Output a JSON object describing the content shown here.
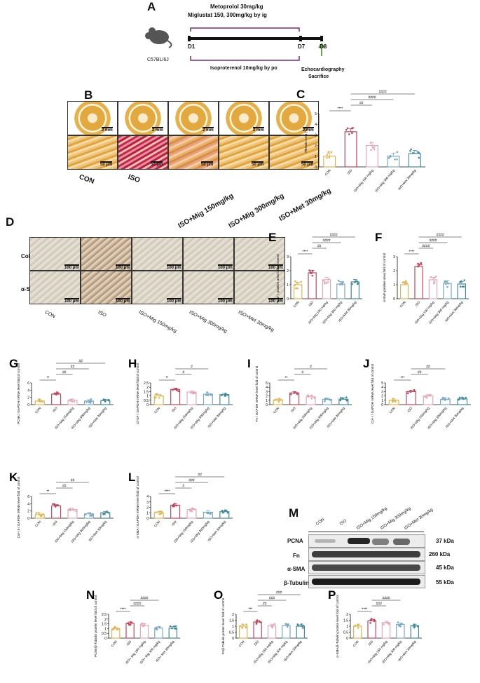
{
  "panelA": {
    "label": "A",
    "drug1": "Metoprolol  30mg/kg",
    "drug2": "Miglustat 150,  300mg/kg by ig",
    "strain": "C57BL/6J",
    "d1": "D1",
    "d7": "D7",
    "d8": "D8",
    "iso": "Isoproterenol  10mg/kg  by po",
    "end1": "Echocardiography",
    "end2": "Sacrifice"
  },
  "panelB": {
    "label": "B",
    "scale_whole": "2 mm",
    "scale_tissue": "50 μm",
    "groups": [
      "CON",
      "ISO",
      "ISO+Mig 150mg/kg",
      "ISO+Mig 300mg/kg",
      "ISO+Met 30mg/kg"
    ]
  },
  "panelD": {
    "label": "D",
    "rows": [
      "Col- I",
      "α-SMA"
    ],
    "scale": "100 μm",
    "groups": [
      "CON",
      "ISO",
      "ISO+Mig 150mg/kg",
      "ISO+Mig 300mg/kg",
      "ISO+Met 30mg/kg"
    ]
  },
  "panelM": {
    "label": "M",
    "lanes": [
      "CON",
      "ISO",
      "ISO+Mig 150mg/kg",
      "ISO+Mig 300mg/kg",
      "ISO+Met 30mg/kg"
    ],
    "proteins": [
      "PCNA",
      "Fn",
      "α-SMA",
      "β-Tubulin"
    ],
    "sizes": [
      "37 kDa",
      "260 kDa",
      "45 kDa",
      "55 kDa"
    ]
  },
  "colors": {
    "con": "#e0b552",
    "iso": "#c0475e",
    "mig150": "#e6a8b5",
    "mig300": "#7aa9c3",
    "met": "#3f8b99"
  },
  "chart_data": [
    {
      "id": "C",
      "type": "bar",
      "ylabel": "Fibrosis Area (%)",
      "ylim": [
        0,
        5
      ],
      "yticks": [
        0,
        1,
        2,
        3,
        4,
        5
      ],
      "categories": [
        "CON",
        "ISO",
        "ISO+Mig 150 mg/kg",
        "ISO+Mig 300 mg/kg",
        "ISO+Met 30mg/kg"
      ],
      "values": [
        1.0,
        3.3,
        2.0,
        1.0,
        1.25
      ],
      "sig": [
        "****",
        "##",
        "####",
        "####"
      ]
    },
    {
      "id": "E",
      "type": "bar",
      "ylabel": "Col- I positive area fold of control",
      "ylim": [
        0,
        3
      ],
      "yticks": [
        0,
        1,
        2,
        3
      ],
      "categories": [
        "CON",
        "ISO",
        "ISO+Mig 150 mg/kg",
        "ISO+Mig 300 mg/kg",
        "ISO+Met 30mg/kg"
      ],
      "values": [
        1.0,
        1.85,
        1.35,
        1.05,
        1.2
      ],
      "sig": [
        "****",
        "##",
        "####",
        "####"
      ]
    },
    {
      "id": "F",
      "type": "bar",
      "ylabel": "α-SMA positive area fold of control",
      "ylim": [
        0,
        3
      ],
      "yticks": [
        0,
        1,
        2,
        3
      ],
      "categories": [
        "CON",
        "ISO",
        "ISO+Mig 150 mg/kg",
        "ISO+Mig 300 mg/kg",
        "ISO+Met 30mg/kg"
      ],
      "values": [
        1.0,
        2.3,
        1.35,
        1.1,
        1.05
      ],
      "sig": [
        "****",
        "####",
        "####",
        "####"
      ]
    },
    {
      "id": "G",
      "type": "bar",
      "ylabel": "PCNA / GAPDH mRNA level fold of control",
      "ylim": [
        0,
        6
      ],
      "yticks": [
        0,
        2,
        4,
        6
      ],
      "categories": [
        "CON",
        "ISO",
        "ISO+Mig 150mg/kg",
        "ISO+Mig 300mg/kg",
        "ISO+Met 30mg/kg"
      ],
      "values": [
        1.0,
        2.9,
        1.2,
        1.0,
        1.1
      ],
      "sig": [
        "**",
        "##",
        "##",
        "##"
      ]
    },
    {
      "id": "H",
      "type": "bar",
      "ylabel": "CTGF / GAPDH mRNA level fold of control",
      "ylim": [
        0,
        2.5
      ],
      "yticks": [
        0,
        0.5,
        1.0,
        1.5,
        2.0,
        2.5
      ],
      "categories": [
        "CON",
        "ISO",
        "ISO+Mig 150mg/kg",
        "ISO+Mig 300mg/kg",
        "ISO+Met 30mg/kg"
      ],
      "values": [
        1.0,
        1.75,
        1.45,
        1.2,
        1.15
      ],
      "sig": [
        "**",
        "#",
        "#"
      ]
    },
    {
      "id": "I",
      "type": "bar",
      "ylabel": "Fn / GAPDH mRNA level fold of control",
      "ylim": [
        0,
        5
      ],
      "yticks": [
        0,
        1,
        2,
        3,
        4,
        5
      ],
      "categories": [
        "CON",
        "ISO",
        "ISO+Mig 150mg/kg",
        "ISO+Mig 300mg/kg",
        "ISO+Met 30mg/kg"
      ],
      "values": [
        1.0,
        2.7,
        1.8,
        1.2,
        1.25
      ],
      "sig": [
        "**",
        "#",
        "#"
      ]
    },
    {
      "id": "J",
      "type": "bar",
      "ylabel": "Col- I / GAPDH mRNA level fold of control",
      "ylim": [
        0,
        5
      ],
      "yticks": [
        0,
        1,
        2,
        3,
        4,
        5
      ],
      "categories": [
        "CON",
        "ISO",
        "ISO+Mig 150mg/kg",
        "ISO+Mig 300mg/kg",
        "ISO+Met 30mg/kg"
      ],
      "values": [
        1.0,
        3.0,
        2.0,
        1.2,
        1.3
      ],
      "sig": [
        "***",
        "##",
        "##"
      ]
    },
    {
      "id": "K",
      "type": "bar",
      "ylabel": "Col- III / GAPDH mRNA level fold of control",
      "ylim": [
        0,
        6
      ],
      "yticks": [
        0,
        2,
        4,
        6
      ],
      "categories": [
        "CON",
        "ISO",
        "ISO+Mig 150mg/kg",
        "ISO+Mig 300mg/kg",
        "ISO+Met 30mg/kg"
      ],
      "values": [
        1.0,
        3.4,
        2.4,
        1.2,
        1.5
      ],
      "sig": [
        "**",
        "##",
        "##"
      ]
    },
    {
      "id": "L",
      "type": "bar",
      "ylabel": "α-SMA / GAPDH mRNA level fold of control",
      "ylim": [
        0,
        4
      ],
      "yticks": [
        0,
        1,
        2,
        3,
        4
      ],
      "categories": [
        "CON",
        "ISO",
        "ISO+Mig 150mg/kg",
        "ISO+Mig 300mg/kg",
        "ISO+Met 30mg/kg"
      ],
      "values": [
        1.0,
        2.4,
        1.6,
        1.1,
        1.2
      ],
      "sig": [
        "****",
        "#",
        "###",
        "##"
      ]
    },
    {
      "id": "N",
      "type": "bar",
      "ylabel": "PCNA/β-Tubulin protein level fold of control",
      "ylim": [
        0,
        2.5
      ],
      "yticks": [
        0,
        0.5,
        1.0,
        1.5,
        2.0,
        2.5
      ],
      "categories": [
        "CON",
        "ISO",
        "ISO+ Mig 150 mg/kg",
        "ISO+ Mig 300 mg/kg",
        "ISO+ Met 30mg/kg"
      ],
      "values": [
        1.0,
        1.55,
        1.35,
        1.05,
        1.05
      ],
      "sig": [
        "****",
        "####",
        "####"
      ]
    },
    {
      "id": "O",
      "type": "bar",
      "ylabel": "Fn/β-Tubulin protein level fold of control",
      "ylim": [
        0,
        2.0
      ],
      "yticks": [
        0,
        0.5,
        1.0,
        1.5,
        2.0
      ],
      "categories": [
        "CON",
        "ISO",
        "ISO+Mig 150 mg/kg",
        "ISO+Mig 300 mg/kg",
        "ISO+Met 30mg/kg"
      ],
      "values": [
        1.0,
        1.35,
        1.05,
        1.05,
        1.0
      ],
      "sig": [
        "***",
        "##",
        "###",
        "###"
      ]
    },
    {
      "id": "P",
      "type": "bar",
      "ylabel": "α-SMA/β-Tubulin protein level fold of control",
      "ylim": [
        0,
        2.0
      ],
      "yticks": [
        0,
        0.5,
        1.0,
        1.5,
        2.0
      ],
      "categories": [
        "CON",
        "ISO",
        "ISO+Mig 150 mg/kg",
        "ISO+Mig 300 mg/kg",
        "ISO+Met 30mg/kg"
      ],
      "values": [
        1.0,
        1.45,
        1.3,
        1.15,
        1.05
      ],
      "sig": [
        "****",
        "###",
        "####"
      ]
    }
  ]
}
